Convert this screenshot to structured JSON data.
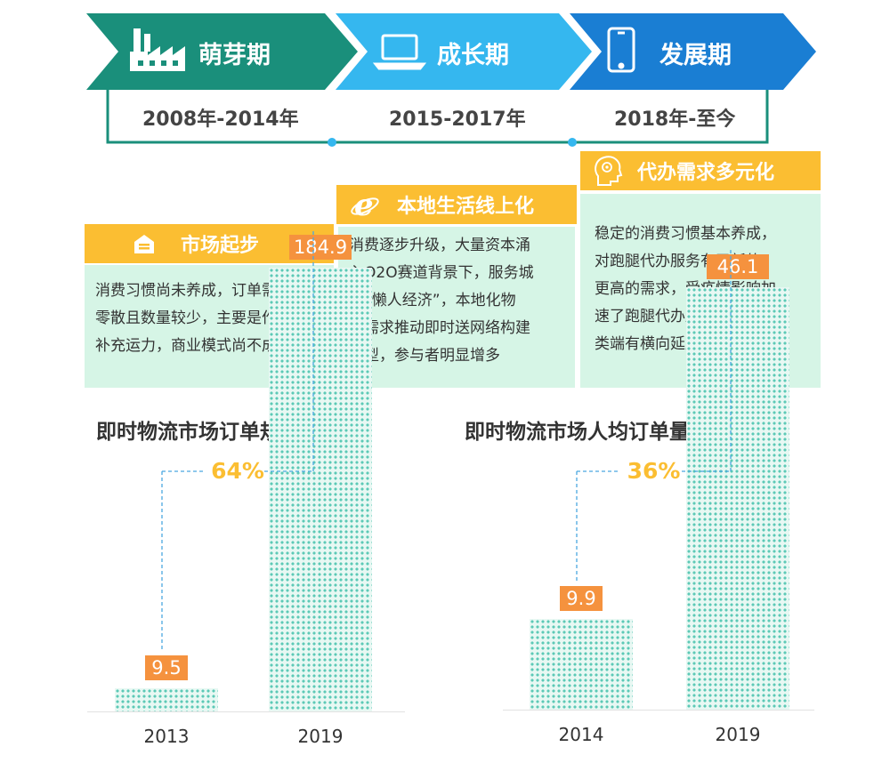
{
  "timeline": {
    "stages": [
      {
        "label": "萌芽期",
        "icon": "factory-icon",
        "period": "2008年-2014年",
        "color": "#1a8f7b"
      },
      {
        "label": "成长期",
        "icon": "laptop-icon",
        "period": "2015-2017年",
        "color": "#35b7ef"
      },
      {
        "label": "发展期",
        "icon": "phone-icon",
        "period": "2018年-至今",
        "color": "#1a7ed3"
      }
    ]
  },
  "boxes": [
    {
      "title": "市场起步",
      "icon": "store-icon",
      "lines": [
        "消费习惯尚未养成，订单需求",
        "零散且数量较少，主要是作为",
        "补充运力，商业模式尚不成熟"
      ]
    },
    {
      "title": "本地生活线上化",
      "icon": "ie-browser-icon",
      "lines": [
        "消费逐步升级，大量资本涌",
        "入O2O赛道背景下，服务城",
        "市“懒人经济”，本地化物",
        "流需求推动即时送网络构建",
        "成型，参与者明显增多"
      ]
    },
    {
      "title": "代办需求多元化",
      "icon": "brain-head-icon",
      "lines": [
        "稳定的消费习惯基本养成，",
        "对跑腿代办服务有了新的、",
        "更高的需求，受疫情影响加",
        "速了跑腿代办服务在服务品",
        "类端有横向延展"
      ]
    }
  ],
  "chart_data": [
    {
      "type": "bar",
      "title": "即时物流市场订单规模（亿单）",
      "categories": [
        "2013",
        "2019"
      ],
      "values": [
        9.5,
        184.9
      ],
      "value_labels": [
        "9.5",
        "184.9"
      ],
      "growth_label": "64%",
      "ylim": [
        0,
        200
      ],
      "bar_color": "#5cc9b6",
      "label_color": "#f5923e"
    },
    {
      "type": "bar",
      "title": "即时物流市场人均订单量（单/年）",
      "categories": [
        "2014",
        "2019"
      ],
      "values": [
        9.9,
        46.1
      ],
      "value_labels": [
        "9.9",
        "46.1"
      ],
      "growth_label": "36%",
      "ylim": [
        0,
        50
      ],
      "bar_color": "#5cc9b6",
      "label_color": "#f5923e"
    }
  ]
}
